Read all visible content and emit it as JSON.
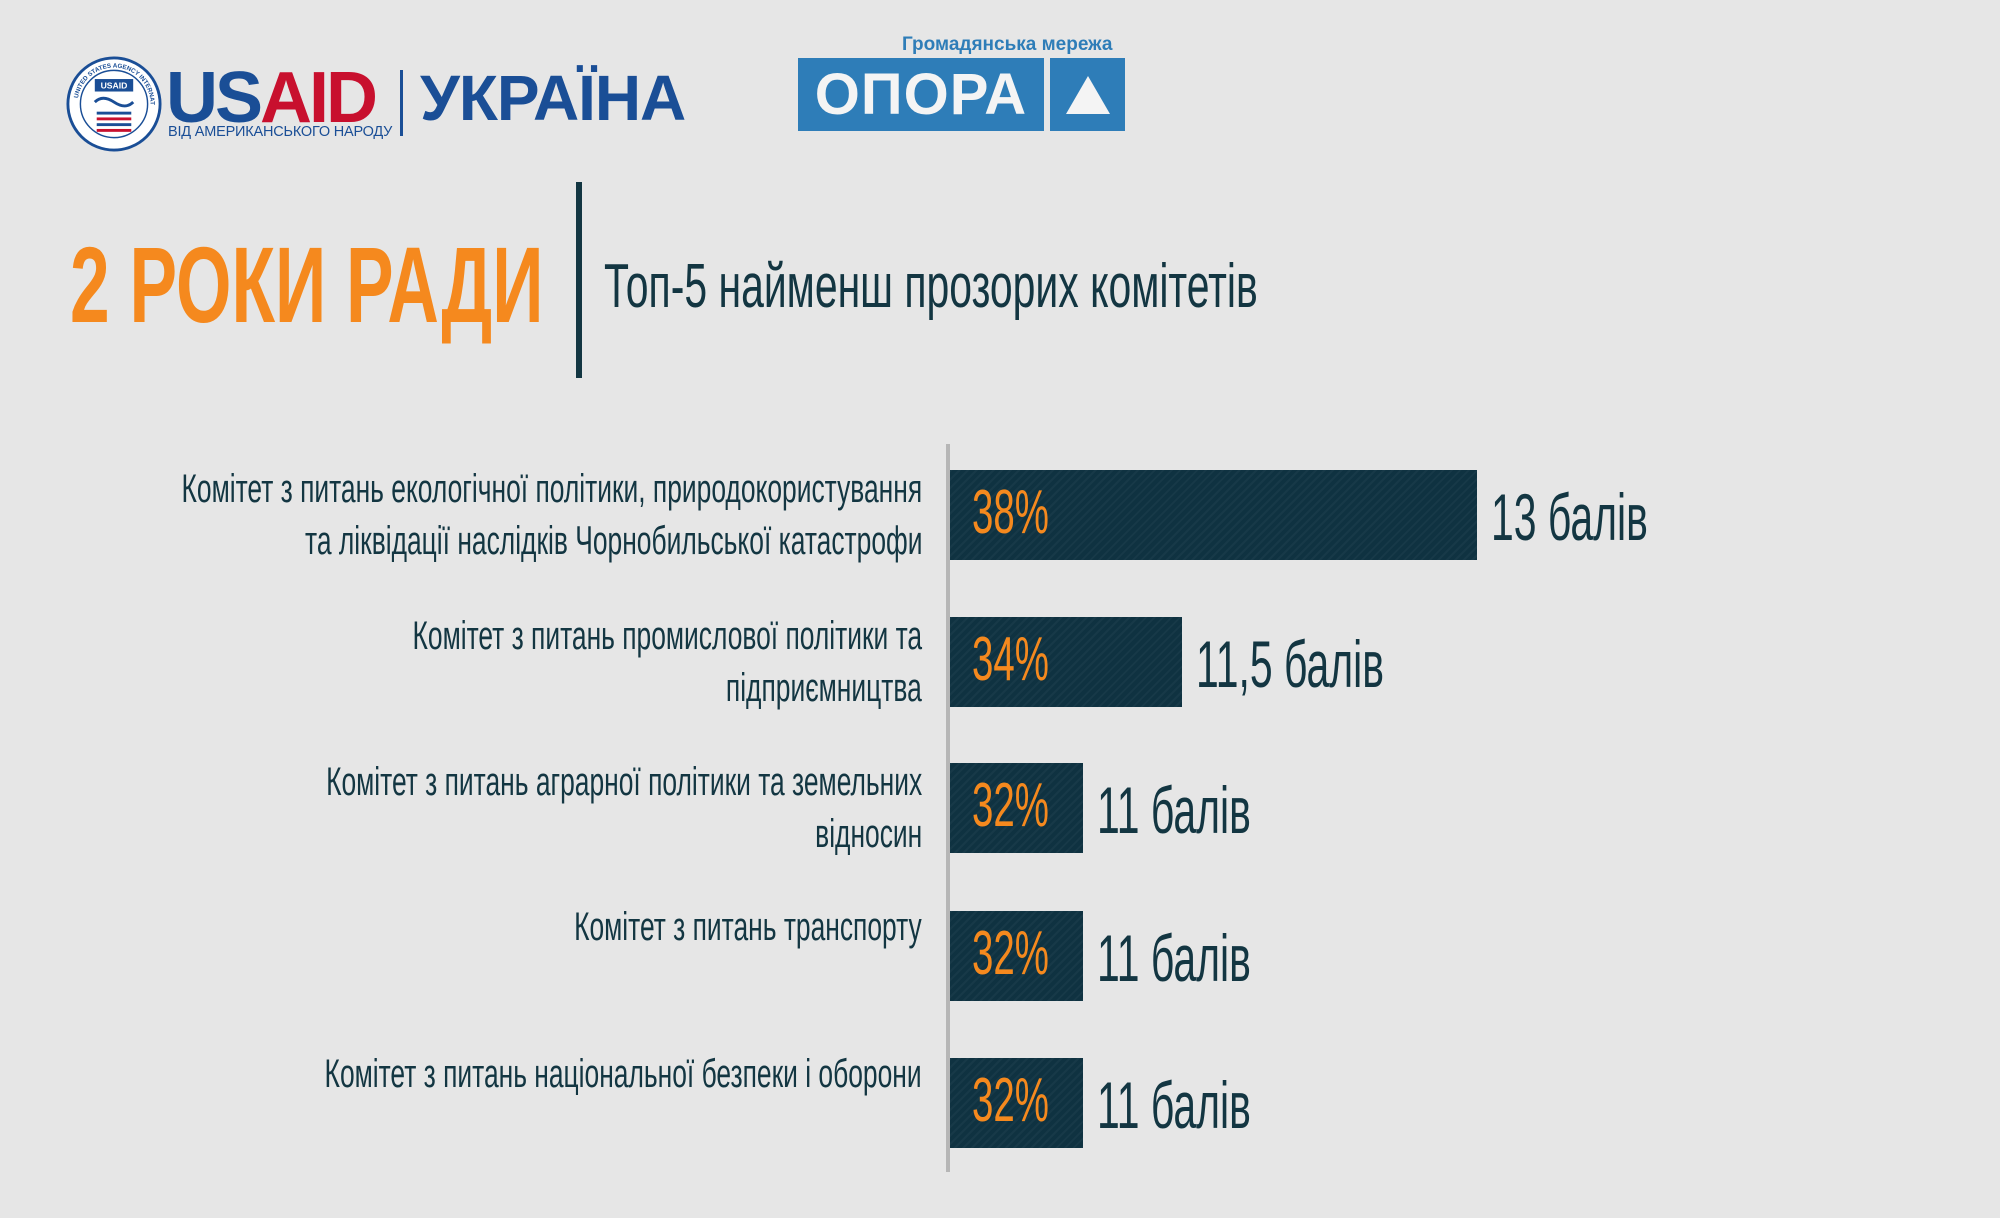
{
  "logos": {
    "usaid": {
      "seal_text": "UNITED STATES AGENCY INTERNATIONAL DEVELOPMENT",
      "seal_badge": "USAID",
      "word_us": "US",
      "word_aid": "AID",
      "subtitle": "ВІД АМЕРИКАНСЬКОГО НАРОДУ",
      "country": "УКРАЇНА",
      "colors": {
        "blue": "#1a4e96",
        "red": "#c8102e"
      }
    },
    "opora": {
      "tagline": "Громадянська мережа",
      "word": "ОПОРА",
      "icon": "triangle-icon",
      "color": "#2e7db8"
    }
  },
  "header": {
    "title": "2 РОКИ РАДИ",
    "subtitle": "Топ-5 найменш прозорих комітетів"
  },
  "chart_data": {
    "type": "bar",
    "orientation": "horizontal",
    "categories": [
      [
        "Комітет з питань екологічної політики, природокористування",
        "та ліквідації наслідків Чорнобильської катастрофи"
      ],
      [
        "Комітет з питань промислової політики та",
        "підприємництва"
      ],
      [
        "Комітет з питань аграрної політики та земельних",
        "відносин"
      ],
      [
        "Комітет з питань транспорту"
      ],
      [
        "Комітет з питань національної безпеки і оборони"
      ]
    ],
    "series": [
      {
        "values": [
          38,
          34,
          32,
          32,
          32
        ],
        "value_labels": [
          "38%",
          "34%",
          "32%",
          "32%",
          "32%"
        ],
        "score_labels": [
          "13 балів",
          "11,5 балів",
          "11 балів",
          "11 балів",
          "11 балів"
        ],
        "scores": [
          13,
          11.5,
          11,
          11,
          11
        ]
      }
    ],
    "colors": {
      "bar": "#0f3241",
      "value_label": "#f5891e",
      "text": "#133642"
    },
    "grid": false
  }
}
